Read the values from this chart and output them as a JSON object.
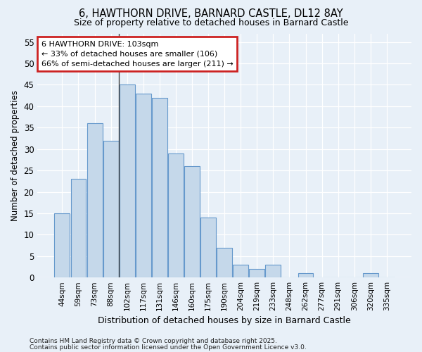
{
  "title_line1": "6, HAWTHORN DRIVE, BARNARD CASTLE, DL12 8AY",
  "title_line2": "Size of property relative to detached houses in Barnard Castle",
  "xlabel": "Distribution of detached houses by size in Barnard Castle",
  "ylabel": "Number of detached properties",
  "categories": [
    "44sqm",
    "59sqm",
    "73sqm",
    "88sqm",
    "102sqm",
    "117sqm",
    "131sqm",
    "146sqm",
    "160sqm",
    "175sqm",
    "190sqm",
    "204sqm",
    "219sqm",
    "233sqm",
    "248sqm",
    "262sqm",
    "277sqm",
    "291sqm",
    "306sqm",
    "320sqm",
    "335sqm"
  ],
  "values": [
    15,
    23,
    36,
    32,
    45,
    43,
    42,
    29,
    26,
    14,
    7,
    3,
    2,
    3,
    0,
    1,
    0,
    0,
    0,
    1,
    0
  ],
  "bar_color": "#c5d8ea",
  "bar_edge_color": "#6699cc",
  "vline_index": 4,
  "vline_color": "#444444",
  "annotation_text": "6 HAWTHORN DRIVE: 103sqm\n← 33% of detached houses are smaller (106)\n66% of semi-detached houses are larger (211) →",
  "annotation_box_facecolor": "#ffffff",
  "annotation_box_edgecolor": "#cc2222",
  "ylim": [
    0,
    57
  ],
  "yticks": [
    0,
    5,
    10,
    15,
    20,
    25,
    30,
    35,
    40,
    45,
    50,
    55
  ],
  "bg_color": "#dce8f5",
  "plot_bg_color": "#e8f0f8",
  "grid_color": "#ffffff",
  "fig_bg_color": "#e8f0f8",
  "footer_line1": "Contains HM Land Registry data © Crown copyright and database right 2025.",
  "footer_line2": "Contains public sector information licensed under the Open Government Licence v3.0."
}
